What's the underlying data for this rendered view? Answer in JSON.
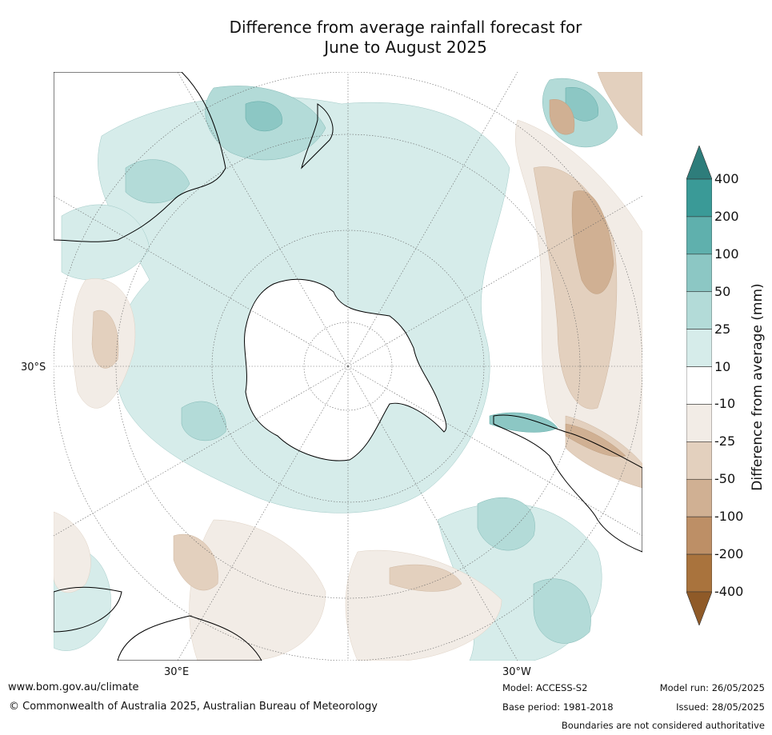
{
  "title_line1": "Difference from average rainfall forecast for",
  "title_line2": "June to August 2025",
  "map": {
    "projection": "south-polar-stereographic",
    "lat_label": "30°S",
    "lon_label_left": "30°E",
    "lon_label_right": "30°W"
  },
  "colorbar": {
    "label": "Difference from average (mm)",
    "ticks": [
      "400",
      "200",
      "100",
      "50",
      "25",
      "10",
      "-10",
      "-25",
      "-50",
      "-100",
      "-200",
      "-400"
    ],
    "colors_top_down": [
      "#2e7d7b",
      "#3a9a97",
      "#5fb0ad",
      "#8cc7c4",
      "#b3dbd8",
      "#d6ecea",
      "#ffffff",
      "#f2ece6",
      "#e3d0be",
      "#d0b093",
      "#bd8f66",
      "#a9733d",
      "#8f5a28"
    ]
  },
  "footer": {
    "url": "www.bom.gov.au/climate",
    "copyright": "© Commonwealth of Australia 2025, Australian Bureau of Meteorology",
    "model": "Model: ACCESS-S2",
    "base_period": "Base period: 1981-2018",
    "model_run": "Model run: 26/05/2025",
    "issued": "Issued: 28/05/2025",
    "disclaimer": "Boundaries are not considered authoritative"
  }
}
